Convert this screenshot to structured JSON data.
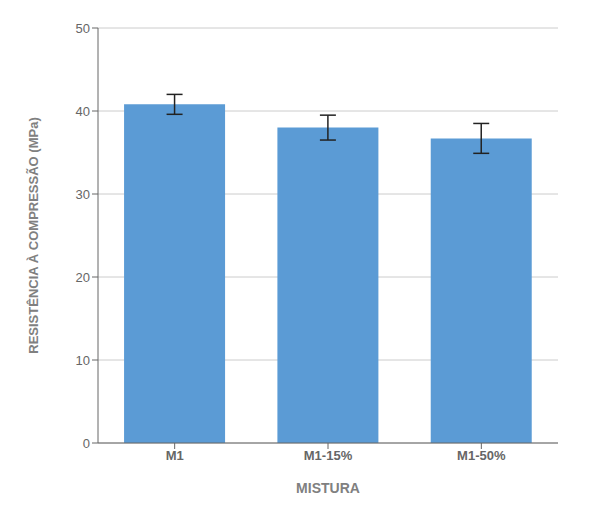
{
  "chart_data": {
    "type": "bar",
    "categories": [
      "M1",
      "M1-15%",
      "M1-50%"
    ],
    "values": [
      40.8,
      38.0,
      36.7
    ],
    "errors": [
      1.2,
      1.5,
      1.8
    ],
    "color": "#5B9BD5",
    "xlabel": "MISTURA",
    "ylabel": "RESISTÊNCIA À COMPRESSÃO (MPa)",
    "ylim": [
      0,
      50
    ],
    "yticks": [
      0,
      10,
      20,
      30,
      40,
      50
    ],
    "grid": true
  }
}
